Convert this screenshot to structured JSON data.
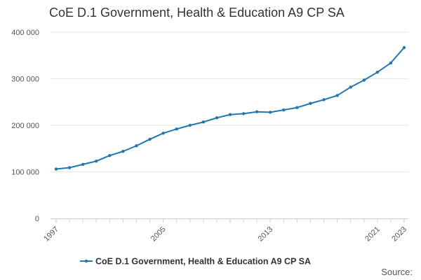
{
  "chart_data": {
    "type": "line",
    "title": "CoE D.1 Government, Health & Education A9 CP SA",
    "xlabel": "",
    "ylabel": "",
    "x": [
      1997,
      1998,
      1999,
      2000,
      2001,
      2002,
      2003,
      2004,
      2005,
      2006,
      2007,
      2008,
      2009,
      2010,
      2011,
      2012,
      2013,
      2014,
      2015,
      2016,
      2017,
      2018,
      2019,
      2020,
      2021,
      2022,
      2023
    ],
    "series": [
      {
        "name": "CoE D.1 Government, Health & Education A9 CP SA",
        "color": "#1f77b4",
        "values": [
          106000,
          109000,
          116000,
          123000,
          135000,
          144000,
          156000,
          170000,
          183000,
          192000,
          200000,
          207000,
          216000,
          223000,
          225000,
          229000,
          228000,
          233000,
          238000,
          247000,
          255000,
          264000,
          282000,
          297000,
          314000,
          334000,
          367000
        ]
      }
    ],
    "ylim": [
      0,
      400000
    ],
    "yticks": [
      0,
      100000,
      200000,
      300000,
      400000
    ],
    "ytick_labels": [
      "0",
      "100 000",
      "200 000",
      "300 000",
      "400 000"
    ],
    "xtick_labels": [
      "1997",
      "2005",
      "2013",
      "2021",
      "2023"
    ],
    "grid": true,
    "legend_position": "bottom"
  },
  "footer": {
    "source_label": "Source:"
  }
}
